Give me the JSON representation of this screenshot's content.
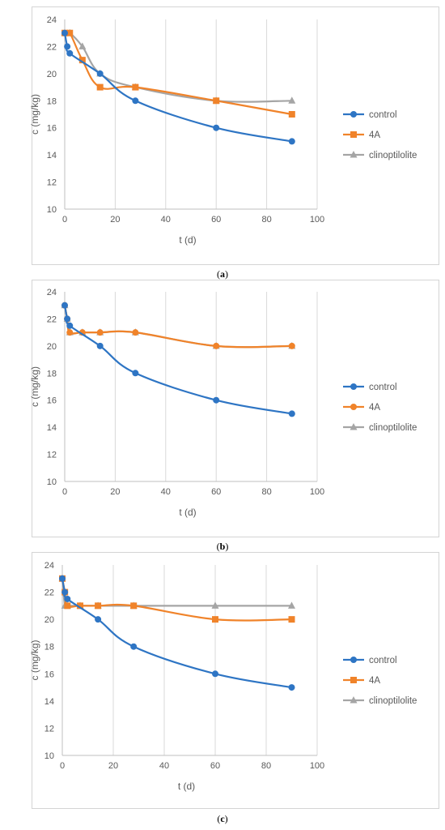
{
  "panels": [
    {
      "caption_letter": "a",
      "chart_data": {
        "type": "line",
        "xlabel": "t (d)",
        "ylabel": "c (mg/kg)",
        "xlim": [
          0,
          100
        ],
        "ylim": [
          10,
          24
        ],
        "xticks": [
          0,
          20,
          40,
          60,
          80,
          100
        ],
        "yticks": [
          10,
          12,
          14,
          16,
          18,
          20,
          22,
          24
        ],
        "grid": "vertical",
        "legend": "right",
        "series": [
          {
            "name": "control",
            "color": "#2e75c4",
            "marker": "circle",
            "x": [
              0,
              1,
              2,
              14,
              28,
              60,
              90
            ],
            "y": [
              23,
              22,
              21.5,
              20,
              18,
              16,
              15
            ]
          },
          {
            "name": "4A",
            "color": "#f0832a",
            "marker": "square",
            "x": [
              0,
              2,
              7,
              14,
              28,
              60,
              90
            ],
            "y": [
              23,
              23,
              21,
              19,
              19,
              18,
              17
            ]
          },
          {
            "name": "clinoptilolite",
            "color": "#a5a5a5",
            "marker": "triangle",
            "x": [
              0,
              2,
              7,
              14,
              28,
              60,
              90
            ],
            "y": [
              23,
              23,
              22,
              20,
              19,
              18,
              18
            ]
          }
        ]
      }
    },
    {
      "caption_letter": "b",
      "chart_data": {
        "type": "line",
        "xlabel": "t (d)",
        "ylabel": "c (mg/kg)",
        "xlim": [
          0,
          100
        ],
        "ylim": [
          10,
          24
        ],
        "xticks": [
          0,
          20,
          40,
          60,
          80,
          100
        ],
        "yticks": [
          10,
          12,
          14,
          16,
          18,
          20,
          22,
          24
        ],
        "grid": "vertical",
        "legend": "right",
        "series": [
          {
            "name": "control",
            "color": "#2e75c4",
            "marker": "circle",
            "x": [
              0,
              1,
              2,
              14,
              28,
              60,
              90
            ],
            "y": [
              23,
              22,
              21.5,
              20,
              18,
              16,
              15
            ]
          },
          {
            "name": "4A",
            "color": "#f0832a",
            "marker": "circle",
            "x": [
              0,
              1,
              2,
              7,
              14,
              28,
              60,
              90
            ],
            "y": [
              23,
              22,
              21,
              21,
              21,
              21,
              20,
              20
            ]
          },
          {
            "name": "clinoptilolite",
            "color": "#a5a5a5",
            "marker": "triangle",
            "x": [
              0,
              1,
              2,
              7,
              14,
              28,
              60,
              90
            ],
            "y": [
              23,
              22,
              21,
              21,
              21,
              21,
              20,
              20
            ]
          }
        ]
      }
    },
    {
      "caption_letter": "c",
      "chart_data": {
        "type": "line",
        "xlabel": "t (d)",
        "ylabel": "c (mg/kg)",
        "xlim": [
          0,
          100
        ],
        "ylim": [
          10,
          24
        ],
        "xticks": [
          0,
          20,
          40,
          60,
          80,
          100
        ],
        "yticks": [
          10,
          12,
          14,
          16,
          18,
          20,
          22,
          24
        ],
        "grid": "vertical",
        "legend": "right",
        "series": [
          {
            "name": "control",
            "color": "#2e75c4",
            "marker": "circle",
            "x": [
              0,
              1,
              2,
              14,
              28,
              60,
              90
            ],
            "y": [
              23,
              22,
              21.5,
              20,
              18,
              16,
              15
            ]
          },
          {
            "name": "4A",
            "color": "#f0832a",
            "marker": "square",
            "x": [
              0,
              1,
              2,
              7,
              14,
              28,
              60,
              90
            ],
            "y": [
              23,
              22,
              21,
              21,
              21,
              21,
              20,
              20
            ]
          },
          {
            "name": "clinoptilolite",
            "color": "#a5a5a5",
            "marker": "triangle",
            "x": [
              0,
              1,
              2,
              7,
              14,
              28,
              60,
              90
            ],
            "y": [
              23,
              21,
              21,
              21,
              21,
              21,
              21,
              21
            ]
          }
        ]
      }
    }
  ]
}
